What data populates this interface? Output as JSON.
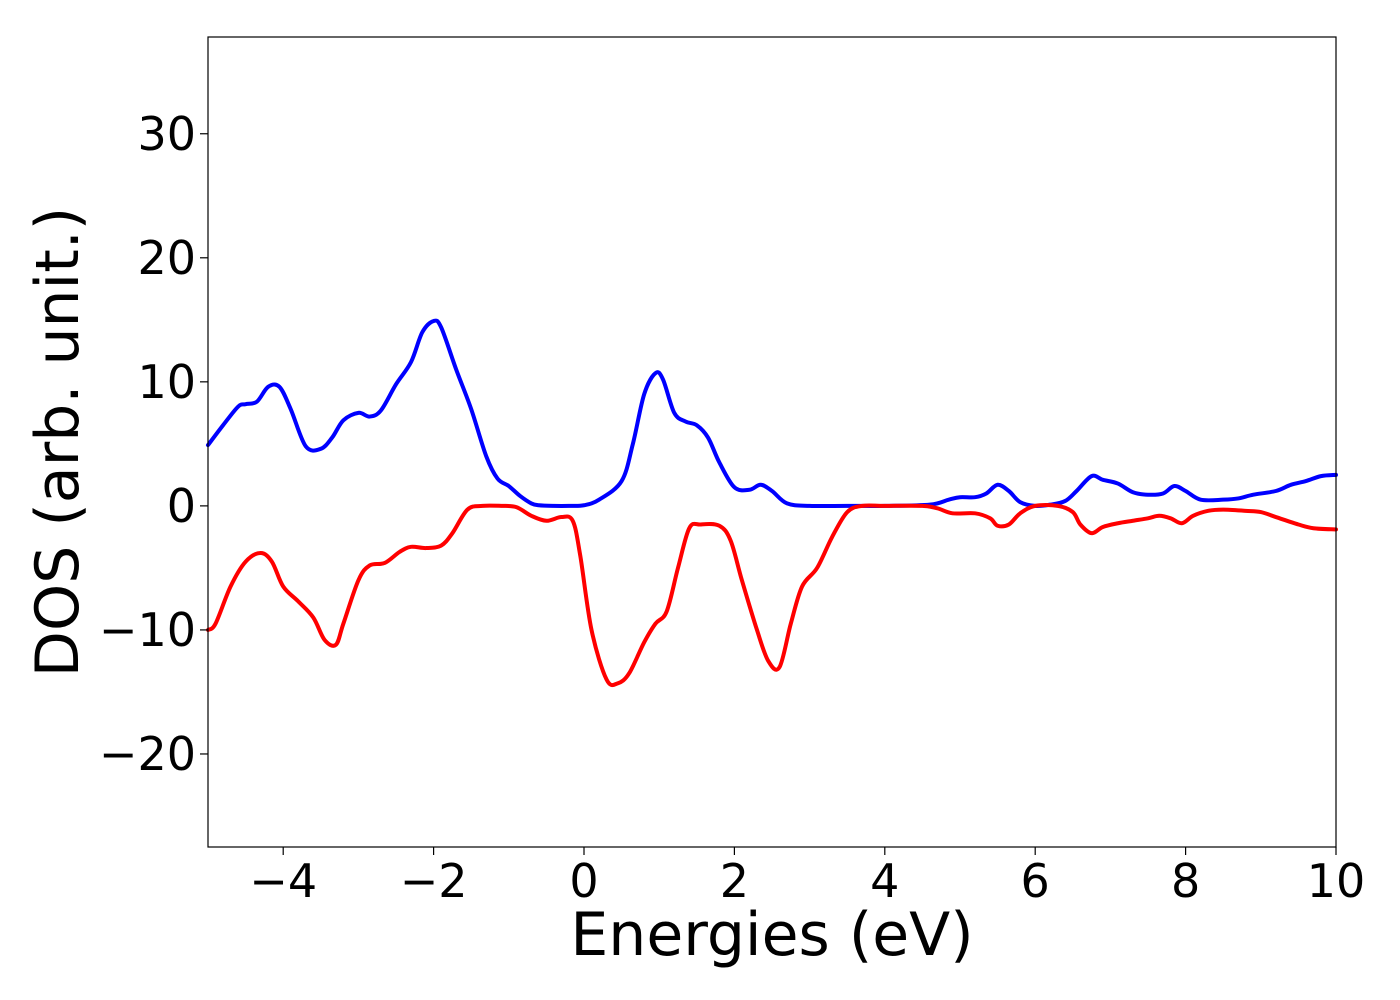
{
  "chart_data": {
    "type": "line",
    "title": "",
    "xlabel": "Energies (eV)",
    "ylabel": "DOS (arb. unit.)",
    "xlim": [
      -5,
      10
    ],
    "ylim": [
      -27.5,
      37.8
    ],
    "x_ticks": [
      -4,
      -2,
      0,
      2,
      4,
      6,
      8,
      10
    ],
    "x_tick_labels": [
      "−4",
      "−2",
      "0",
      "2",
      "4",
      "6",
      "8",
      "10"
    ],
    "y_ticks": [
      -20,
      -10,
      0,
      10,
      20,
      30
    ],
    "y_tick_labels": [
      "−20",
      "−10",
      "0",
      "10",
      "20",
      "30"
    ],
    "grid": false,
    "legend": "none",
    "series": [
      {
        "color": "#0000ff",
        "x": [
          -5.0,
          -4.8,
          -4.6,
          -4.5,
          -4.35,
          -4.2,
          -4.05,
          -3.9,
          -3.7,
          -3.5,
          -3.35,
          -3.2,
          -3.0,
          -2.85,
          -2.7,
          -2.5,
          -2.3,
          -2.15,
          -2.0,
          -1.9,
          -1.7,
          -1.5,
          -1.3,
          -1.15,
          -1.0,
          -0.85,
          -0.7,
          -0.6,
          -0.4,
          -0.2,
          0.0,
          0.2,
          0.5,
          0.65,
          0.8,
          0.95,
          1.05,
          1.2,
          1.35,
          1.5,
          1.65,
          1.8,
          2.0,
          2.2,
          2.35,
          2.5,
          2.7,
          3.0,
          3.5,
          4.0,
          4.6,
          4.85,
          5.0,
          5.2,
          5.35,
          5.5,
          5.65,
          5.8,
          6.0,
          6.2,
          6.4,
          6.55,
          6.75,
          6.9,
          7.1,
          7.3,
          7.5,
          7.7,
          7.85,
          8.0,
          8.2,
          8.5,
          8.7,
          8.9,
          9.2,
          9.4,
          9.6,
          9.8,
          10.0
        ],
        "values": [
          4.9,
          6.5,
          8.0,
          8.2,
          8.4,
          9.6,
          9.6,
          7.8,
          4.8,
          4.6,
          5.5,
          6.9,
          7.5,
          7.2,
          7.7,
          9.8,
          11.6,
          14.0,
          14.9,
          14.4,
          11.0,
          7.8,
          4.0,
          2.2,
          1.6,
          0.8,
          0.2,
          0.05,
          0.0,
          0.0,
          0.05,
          0.5,
          2.0,
          5.0,
          9.0,
          10.7,
          10.2,
          7.5,
          6.8,
          6.5,
          5.5,
          3.5,
          1.5,
          1.3,
          1.7,
          1.2,
          0.2,
          0.0,
          0.0,
          0.0,
          0.1,
          0.5,
          0.7,
          0.7,
          1.0,
          1.7,
          1.2,
          0.3,
          0.0,
          0.1,
          0.4,
          1.2,
          2.4,
          2.1,
          1.8,
          1.1,
          0.9,
          1.0,
          1.6,
          1.2,
          0.5,
          0.5,
          0.6,
          0.9,
          1.2,
          1.7,
          2.0,
          2.4,
          2.5
        ]
      },
      {
        "color": "#ff0000",
        "x": [
          -5.0,
          -4.9,
          -4.7,
          -4.5,
          -4.3,
          -4.15,
          -4.0,
          -3.8,
          -3.6,
          -3.45,
          -3.3,
          -3.2,
          -3.0,
          -2.85,
          -2.65,
          -2.45,
          -2.3,
          -2.1,
          -1.9,
          -1.75,
          -1.55,
          -1.35,
          -1.1,
          -0.9,
          -0.7,
          -0.5,
          -0.3,
          -0.15,
          -0.05,
          0.1,
          0.3,
          0.45,
          0.6,
          0.8,
          0.95,
          1.1,
          1.25,
          1.4,
          1.55,
          1.8,
          1.95,
          2.1,
          2.3,
          2.45,
          2.6,
          2.75,
          2.9,
          3.1,
          3.3,
          3.5,
          3.7,
          4.0,
          4.5,
          4.7,
          4.9,
          5.2,
          5.4,
          5.5,
          5.65,
          5.8,
          6.0,
          6.3,
          6.5,
          6.6,
          6.75,
          6.9,
          7.1,
          7.3,
          7.5,
          7.65,
          7.8,
          7.95,
          8.1,
          8.3,
          8.5,
          8.8,
          9.0,
          9.2,
          9.5,
          9.7,
          10.0
        ],
        "values": [
          -10.0,
          -9.5,
          -6.5,
          -4.5,
          -3.8,
          -4.5,
          -6.5,
          -7.7,
          -9.0,
          -10.8,
          -11.2,
          -9.5,
          -6.0,
          -4.8,
          -4.6,
          -3.7,
          -3.3,
          -3.4,
          -3.2,
          -2.2,
          -0.3,
          0.0,
          0.0,
          -0.1,
          -0.8,
          -1.2,
          -0.9,
          -1.2,
          -4.0,
          -10.0,
          -14.0,
          -14.3,
          -13.5,
          -11.0,
          -9.5,
          -8.5,
          -5.0,
          -1.8,
          -1.5,
          -1.6,
          -2.8,
          -6.0,
          -10.0,
          -12.5,
          -13.0,
          -9.5,
          -6.5,
          -5.0,
          -2.5,
          -0.5,
          0.0,
          0.0,
          0.0,
          -0.2,
          -0.6,
          -0.6,
          -1.0,
          -1.6,
          -1.5,
          -0.6,
          0.0,
          0.0,
          -0.5,
          -1.5,
          -2.2,
          -1.7,
          -1.4,
          -1.2,
          -1.0,
          -0.8,
          -1.0,
          -1.4,
          -0.8,
          -0.4,
          -0.3,
          -0.4,
          -0.5,
          -0.9,
          -1.5,
          -1.8,
          -1.9
        ]
      }
    ]
  }
}
